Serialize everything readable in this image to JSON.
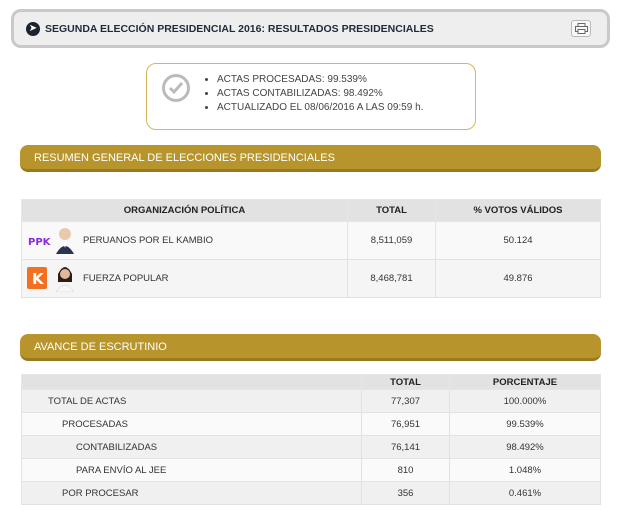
{
  "header": {
    "title": "SEGUNDA ELECCIÓN PRESIDENCIAL 2016: RESULTADOS PRESIDENCIALES"
  },
  "status": {
    "items": [
      "ACTAS PROCESADAS: 99.539%",
      "ACTAS CONTABILIZADAS: 98.492%",
      "ACTUALIZADO EL 08/06/2016 A LAS 09:59 h."
    ]
  },
  "summary": {
    "section_title": "RESUMEN GENERAL DE ELECCIONES PRESIDENCIALES",
    "columns": [
      "ORGANIZACIÓN POLÍTICA",
      "TOTAL",
      "% VOTOS VÁLIDOS"
    ],
    "rows": [
      {
        "logo": "PPK",
        "logo_color": "#8a2be2",
        "name": "PERUANOS POR EL KAMBIO",
        "total": "8,511,059",
        "pct": "50.124"
      },
      {
        "logo": "K",
        "logo_color": "#f36f21",
        "name": "FUERZA POPULAR",
        "total": "8,468,781",
        "pct": "49.876"
      }
    ]
  },
  "progress": {
    "section_title": "AVANCE DE ESCRUTINIO",
    "columns": [
      "",
      "TOTAL",
      "PORCENTAJE"
    ],
    "rows": [
      {
        "label": "TOTAL DE ACTAS",
        "total": "77,307",
        "pct": "100.000%"
      },
      {
        "label": "PROCESADAS",
        "total": "76,951",
        "pct": "99.539%"
      },
      {
        "label": "CONTABILIZADAS",
        "total": "76,141",
        "pct": "98.492%"
      },
      {
        "label": "PARA ENVÍO AL JEE",
        "total": "810",
        "pct": "1.048%"
      },
      {
        "label": "POR PROCESAR",
        "total": "356",
        "pct": "0.461%"
      }
    ]
  },
  "colors": {
    "accent": "#b8952c",
    "header_bg": "#eeeeee"
  }
}
